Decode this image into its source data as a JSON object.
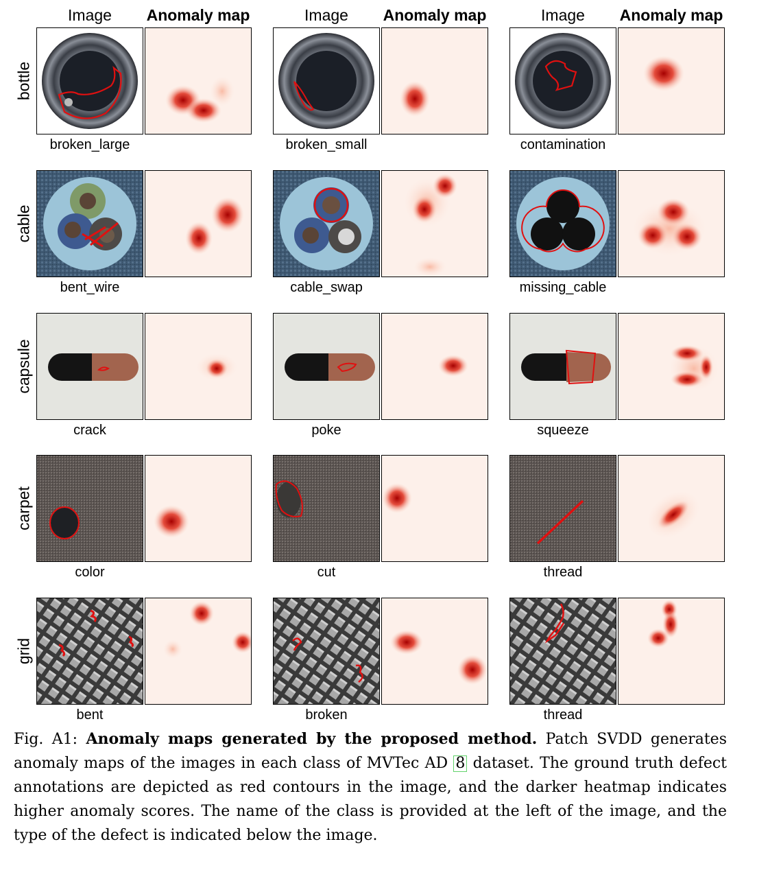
{
  "headers": {
    "image": "Image",
    "anomaly_map": "Anomaly map"
  },
  "rows": [
    {
      "cls": "bottle",
      "defects": [
        "broken_large",
        "broken_small",
        "contamination"
      ]
    },
    {
      "cls": "cable",
      "defects": [
        "bent_wire",
        "cable_swap",
        "missing_cable"
      ]
    },
    {
      "cls": "capsule",
      "defects": [
        "crack",
        "poke",
        "squeeze"
      ]
    },
    {
      "cls": "carpet",
      "defects": [
        "color",
        "cut",
        "thread"
      ]
    },
    {
      "cls": "grid",
      "defects": [
        "bent",
        "broken",
        "thread"
      ]
    }
  ],
  "caption": {
    "prefix": "Fig. A1: ",
    "bold": "Anomaly maps generated by the proposed method.",
    "text1": " Patch SVDD generates anomaly maps of the images in each class of MVTec AD ",
    "ref": "8",
    "text2": " dataset. The ground truth defect annotations are depicted as red contours in the image, and the darker heatmap indicates higher anomaly scores. The name of the class is provided at the left of the image, and the type of the defect is indicated below the image."
  },
  "colors": {
    "contour": "#e01010",
    "heat": "#c40000",
    "heat_bg": "#fdf0ea"
  }
}
